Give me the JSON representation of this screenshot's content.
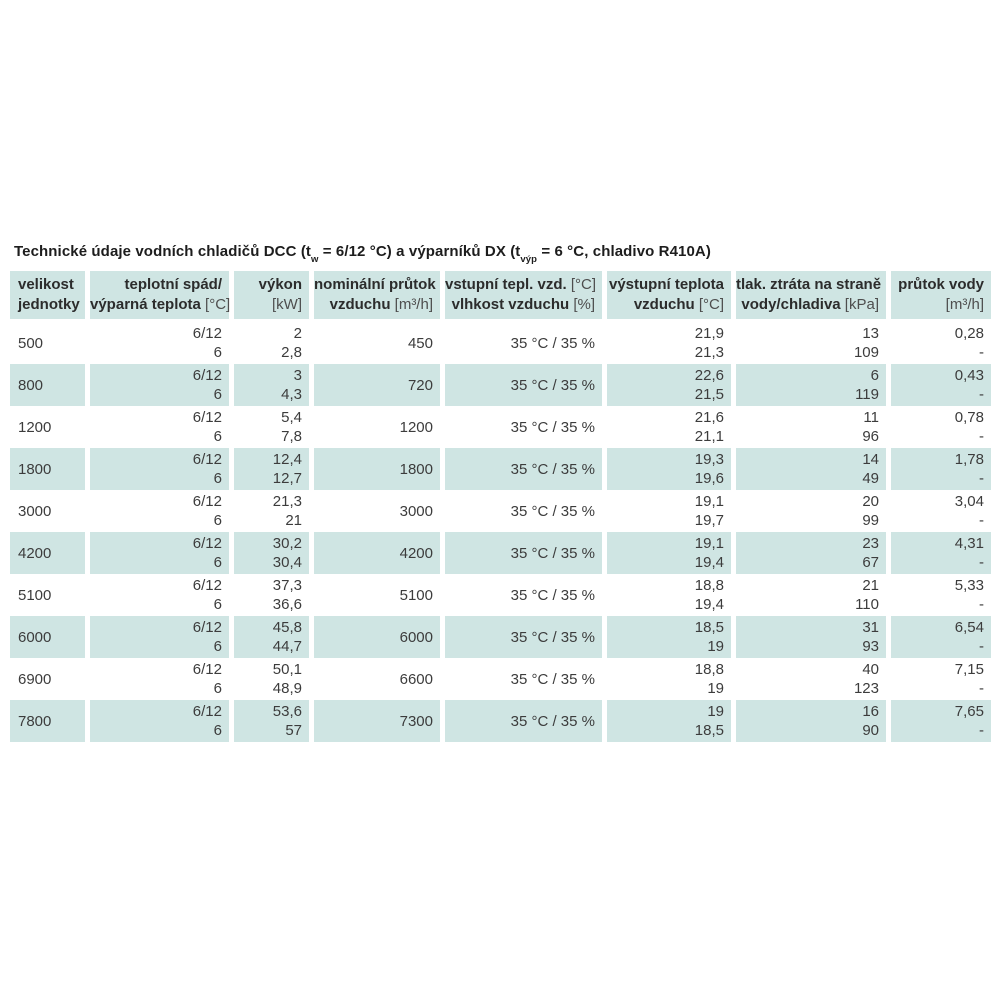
{
  "title": {
    "part1": "Technické údaje vodních chladičů DCC (t",
    "sub1": "w",
    "part2": " = 6/12 °C) a výparníků DX (t",
    "sub2": "výp",
    "part3": " = 6 °C, chladivo R410A)"
  },
  "colors": {
    "band_teal": "#cfe5e3",
    "text": "#3c3c3c",
    "header_text": "#2c2c2c"
  },
  "table": {
    "headers": [
      {
        "line1_bold": "velikost",
        "line1_unit": "",
        "line2_bold": "jednotky",
        "line2_unit": ""
      },
      {
        "line1_bold": "teplotní spád/",
        "line1_unit": "",
        "line2_bold": "výparná teplota",
        "line2_unit": " [°C]"
      },
      {
        "line1_bold": "výkon",
        "line1_unit": "",
        "line2_bold": "",
        "line2_unit": "[kW]"
      },
      {
        "line1_bold": "nominální průtok",
        "line1_unit": "",
        "line2_bold": "vzduchu",
        "line2_unit": " [m³/h]"
      },
      {
        "line1_bold": "vstupní tepl. vzd.",
        "line1_unit": " [°C]",
        "line2_bold": "vlhkost vzduchu",
        "line2_unit": " [%]"
      },
      {
        "line1_bold": "výstupní teplota",
        "line1_unit": "",
        "line2_bold": "vzduchu",
        "line2_unit": " [°C]"
      },
      {
        "line1_bold": "tlak. ztráta na straně",
        "line1_unit": "",
        "line2_bold": "vody/chladiva",
        "line2_unit": " [kPa]"
      },
      {
        "line1_bold": "průtok vody",
        "line1_unit": "",
        "line2_bold": "",
        "line2_unit": "[m³/h]"
      }
    ],
    "rows": [
      {
        "size": "500",
        "temp": [
          "6/12",
          "6"
        ],
        "power": [
          "2",
          "2,8"
        ],
        "airflow": "450",
        "inlet": "35 °C / 35 %",
        "outlet": [
          "21,9",
          "21,3"
        ],
        "pressure": [
          "13",
          "109"
        ],
        "water": [
          "0,28",
          "-"
        ]
      },
      {
        "size": "800",
        "temp": [
          "6/12",
          "6"
        ],
        "power": [
          "3",
          "4,3"
        ],
        "airflow": "720",
        "inlet": "35 °C / 35 %",
        "outlet": [
          "22,6",
          "21,5"
        ],
        "pressure": [
          "6",
          "119"
        ],
        "water": [
          "0,43",
          "-"
        ]
      },
      {
        "size": "1200",
        "temp": [
          "6/12",
          "6"
        ],
        "power": [
          "5,4",
          "7,8"
        ],
        "airflow": "1200",
        "inlet": "35 °C / 35 %",
        "outlet": [
          "21,6",
          "21,1"
        ],
        "pressure": [
          "11",
          "96"
        ],
        "water": [
          "0,78",
          "-"
        ]
      },
      {
        "size": "1800",
        "temp": [
          "6/12",
          "6"
        ],
        "power": [
          "12,4",
          "12,7"
        ],
        "airflow": "1800",
        "inlet": "35 °C / 35 %",
        "outlet": [
          "19,3",
          "19,6"
        ],
        "pressure": [
          "14",
          "49"
        ],
        "water": [
          "1,78",
          "-"
        ]
      },
      {
        "size": "3000",
        "temp": [
          "6/12",
          "6"
        ],
        "power": [
          "21,3",
          "21"
        ],
        "airflow": "3000",
        "inlet": "35 °C / 35 %",
        "outlet": [
          "19,1",
          "19,7"
        ],
        "pressure": [
          "20",
          "99"
        ],
        "water": [
          "3,04",
          "-"
        ]
      },
      {
        "size": "4200",
        "temp": [
          "6/12",
          "6"
        ],
        "power": [
          "30,2",
          "30,4"
        ],
        "airflow": "4200",
        "inlet": "35 °C / 35 %",
        "outlet": [
          "19,1",
          "19,4"
        ],
        "pressure": [
          "23",
          "67"
        ],
        "water": [
          "4,31",
          "-"
        ]
      },
      {
        "size": "5100",
        "temp": [
          "6/12",
          "6"
        ],
        "power": [
          "37,3",
          "36,6"
        ],
        "airflow": "5100",
        "inlet": "35 °C / 35 %",
        "outlet": [
          "18,8",
          "19,4"
        ],
        "pressure": [
          "21",
          "110"
        ],
        "water": [
          "5,33",
          "-"
        ]
      },
      {
        "size": "6000",
        "temp": [
          "6/12",
          "6"
        ],
        "power": [
          "45,8",
          "44,7"
        ],
        "airflow": "6000",
        "inlet": "35 °C / 35 %",
        "outlet": [
          "18,5",
          "19"
        ],
        "pressure": [
          "31",
          "93"
        ],
        "water": [
          "6,54",
          "-"
        ]
      },
      {
        "size": "6900",
        "temp": [
          "6/12",
          "6"
        ],
        "power": [
          "50,1",
          "48,9"
        ],
        "airflow": "6600",
        "inlet": "35 °C / 35 %",
        "outlet": [
          "18,8",
          "19"
        ],
        "pressure": [
          "40",
          "123"
        ],
        "water": [
          "7,15",
          "-"
        ]
      },
      {
        "size": "7800",
        "temp": [
          "6/12",
          "6"
        ],
        "power": [
          "53,6",
          "57"
        ],
        "airflow": "7300",
        "inlet": "35 °C / 35 %",
        "outlet": [
          "19",
          "18,5"
        ],
        "pressure": [
          "16",
          "90"
        ],
        "water": [
          "7,65",
          "-"
        ]
      }
    ]
  }
}
